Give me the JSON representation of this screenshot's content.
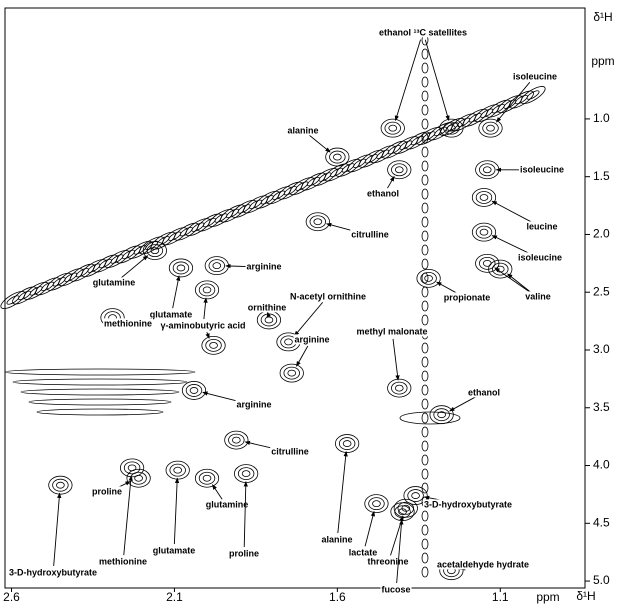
{
  "chart_data": {
    "type": "nmr-2d",
    "x_label": "δ¹H",
    "x_unit": "ppm",
    "y_label": "δ¹H",
    "y_unit": "ppm",
    "xlim": [
      2.62,
      0.84
    ],
    "ylim": [
      0.04,
      5.06
    ],
    "xticks": [
      2.6,
      2.1,
      1.6,
      1.1
    ],
    "yticks": [
      {
        "value": 1,
        "label": "1.0"
      },
      1.5,
      {
        "value": 2,
        "label": "2.0"
      },
      2.5,
      {
        "value": 3,
        "label": "3.0"
      },
      3.5,
      {
        "value": 4,
        "label": "4.0"
      },
      4.5,
      {
        "value": 5,
        "label": "5.0"
      }
    ],
    "annotations": [
      {
        "label": "ethanol ¹³C satellites",
        "points": [
          [
            1.43,
            1.08
          ],
          [
            1.25,
            1.08
          ]
        ]
      },
      {
        "label": "isoleucine",
        "points": [
          [
            1.13,
            1.08
          ]
        ]
      },
      {
        "label": "isoleucine",
        "points": [
          [
            1.14,
            1.44
          ]
        ]
      },
      {
        "label": "alanine",
        "points": [
          [
            1.6,
            1.33
          ]
        ]
      },
      {
        "label": "ethanol",
        "points": [
          [
            1.41,
            1.44
          ]
        ]
      },
      {
        "label": "citrulline",
        "points": [
          [
            1.66,
            1.89
          ]
        ]
      },
      {
        "label": "leucine",
        "points": [
          [
            1.15,
            1.68
          ]
        ]
      },
      {
        "label": "isoleucine",
        "points": [
          [
            1.15,
            1.98
          ]
        ]
      },
      {
        "label": "arginine",
        "points": [
          [
            1.97,
            2.27
          ]
        ]
      },
      {
        "label": "valine",
        "points": [
          [
            1.14,
            2.25
          ],
          [
            1.1,
            2.3
          ]
        ]
      },
      {
        "label": "propionate",
        "points": [
          [
            1.32,
            2.38
          ]
        ]
      },
      {
        "label": "glutamine",
        "points": [
          [
            2.16,
            2.14
          ]
        ]
      },
      {
        "label": "N-acetyl ornithine",
        "points": [
          [
            1.75,
            2.93
          ]
        ]
      },
      {
        "label": "ornithine",
        "points": [
          [
            1.81,
            2.74
          ]
        ]
      },
      {
        "label": "γ-aminobutyric acid",
        "points": [
          [
            2.0,
            2.48
          ],
          [
            1.98,
            2.96
          ]
        ]
      },
      {
        "label": "glutamate",
        "points": [
          [
            2.08,
            2.29
          ]
        ]
      },
      {
        "label": "methionine",
        "points": [
          [
            2.29,
            2.72
          ]
        ]
      },
      {
        "label": "methyl malonate",
        "points": [
          [
            1.41,
            3.33
          ]
        ]
      },
      {
        "label": "arginine",
        "points": [
          [
            1.74,
            3.2
          ]
        ]
      },
      {
        "label": "arginine",
        "points": [
          [
            2.04,
            3.35
          ]
        ]
      },
      {
        "label": "ethanol",
        "points": [
          [
            1.28,
            3.56
          ]
        ]
      },
      {
        "label": "citrulline",
        "points": [
          [
            1.91,
            3.78
          ]
        ]
      },
      {
        "label": "alanine",
        "points": [
          [
            1.57,
            3.81
          ]
        ]
      },
      {
        "label": "lactate",
        "points": [
          [
            1.48,
            4.33
          ]
        ]
      },
      {
        "label": "threonine",
        "points": [
          [
            1.39,
            4.37
          ]
        ]
      },
      {
        "label": "fucose",
        "points": [
          [
            1.4,
            4.4
          ]
        ]
      },
      {
        "label": "3-D-hydroxybutyrate",
        "points": [
          [
            1.36,
            4.26
          ]
        ]
      },
      {
        "label": "acetaldehyde hydrate",
        "points": [
          [
            1.25,
            4.91
          ]
        ]
      },
      {
        "label": "proline",
        "points": [
          [
            2.21,
            4.11
          ]
        ]
      },
      {
        "label": "methionine",
        "points": [
          [
            2.23,
            4.02
          ]
        ]
      },
      {
        "label": "glutamate",
        "points": [
          [
            2.09,
            4.04
          ]
        ]
      },
      {
        "label": "glutamine",
        "points": [
          [
            2.0,
            4.11
          ]
        ]
      },
      {
        "label": "proline",
        "points": [
          [
            1.88,
            4.07
          ]
        ]
      },
      {
        "label": "3-D-hydroxybutyrate",
        "points": [
          [
            2.45,
            4.17
          ]
        ]
      }
    ]
  }
}
